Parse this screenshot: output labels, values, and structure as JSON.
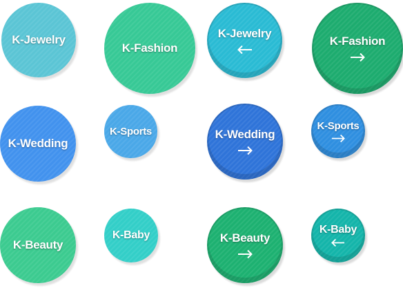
{
  "bubbles": [
    {
      "label": "K-Jewelry",
      "color": "#5bc5d5",
      "arrow": null
    },
    {
      "label": "K-Fashion",
      "color": "#37c996",
      "arrow": null
    },
    {
      "label": "K-Jewelry",
      "color": "#2abbd4",
      "arrow": "left"
    },
    {
      "label": "K-Fashion",
      "color": "#1dac6f",
      "arrow": "right"
    },
    {
      "label": "K-Wedding",
      "color": "#4292ee",
      "arrow": null
    },
    {
      "label": "K-Sports",
      "color": "#4aa8e8",
      "arrow": null
    },
    {
      "label": "K-Wedding",
      "color": "#2f74d9",
      "arrow": "right"
    },
    {
      "label": "K-Sports",
      "color": "#2f8fe0",
      "arrow": "right"
    },
    {
      "label": "K-Beauty",
      "color": "#3ccb90",
      "arrow": null
    },
    {
      "label": "K-Baby",
      "color": "#33cfc8",
      "arrow": null
    },
    {
      "label": "K-Beauty",
      "color": "#1db171",
      "arrow": "right"
    },
    {
      "label": "K-Baby",
      "color": "#14b5aa",
      "arrow": "left"
    }
  ]
}
